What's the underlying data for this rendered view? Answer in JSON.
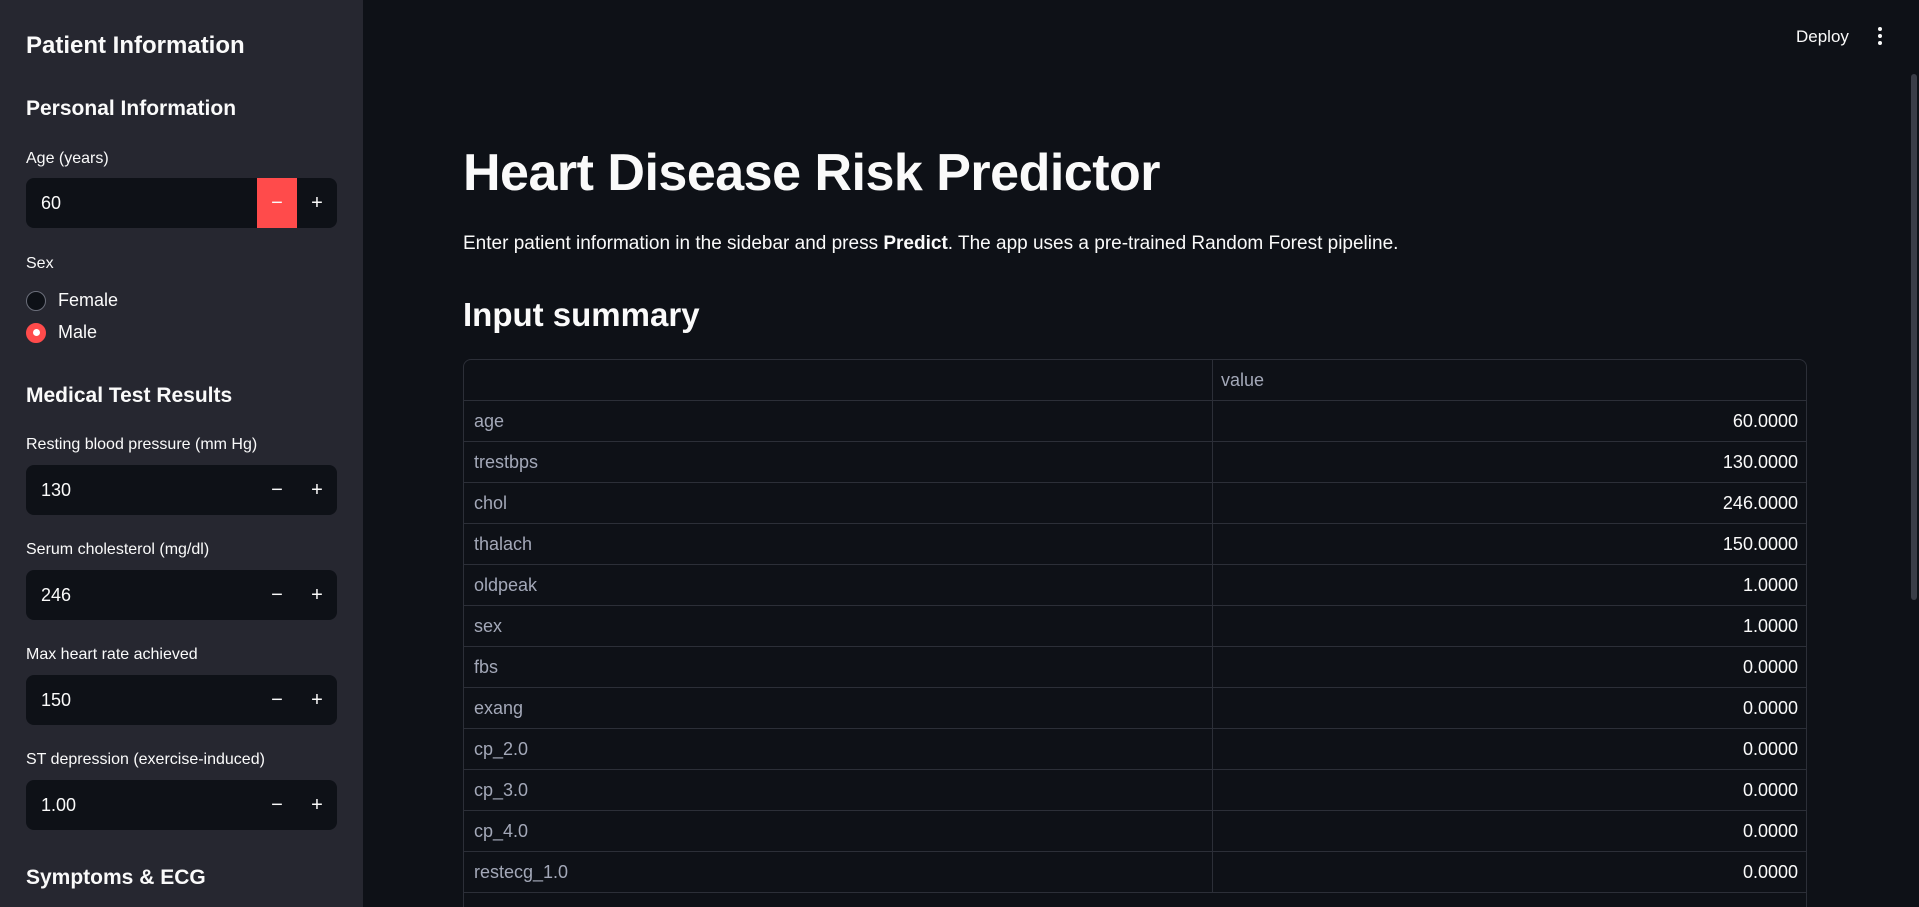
{
  "sidebar": {
    "title": "Patient Information",
    "personal_heading": "Personal Information",
    "age_label": "Age (years)",
    "age_value": "60",
    "sex_label": "Sex",
    "sex_options": [
      "Female",
      "Male"
    ],
    "sex_selected": "Male",
    "medical_heading": "Medical Test Results",
    "bp_label": "Resting blood pressure (mm Hg)",
    "bp_value": "130",
    "chol_label": "Serum cholesterol (mg/dl)",
    "chol_value": "246",
    "hr_label": "Max heart rate achieved",
    "hr_value": "150",
    "st_label": "ST depression (exercise-induced)",
    "st_value": "1.00",
    "symptoms_heading": "Symptoms & ECG",
    "minus_glyph": "−",
    "plus_glyph": "+"
  },
  "header": {
    "deploy_label": "Deploy",
    "menu_icon": "vertical-dots-icon"
  },
  "main": {
    "title": "Heart Disease Risk Predictor",
    "intro_pre": "Enter patient information in the sidebar and press ",
    "intro_bold": "Predict",
    "intro_post": ". The app uses a pre-trained Random Forest pipeline.",
    "summary_heading": "Input summary",
    "table": {
      "columns": [
        "",
        "value"
      ],
      "rows": [
        [
          "age",
          "60.0000"
        ],
        [
          "trestbps",
          "130.0000"
        ],
        [
          "chol",
          "246.0000"
        ],
        [
          "thalach",
          "150.0000"
        ],
        [
          "oldpeak",
          "1.0000"
        ],
        [
          "sex",
          "1.0000"
        ],
        [
          "fbs",
          "0.0000"
        ],
        [
          "exang",
          "0.0000"
        ],
        [
          "cp_2.0",
          "0.0000"
        ],
        [
          "cp_3.0",
          "0.0000"
        ],
        [
          "cp_4.0",
          "0.0000"
        ],
        [
          "restecg_1.0",
          "0.0000"
        ]
      ]
    }
  },
  "colors": {
    "accent": "#ff4b4b",
    "background": "#0e1117",
    "sidebar": "#262730"
  }
}
